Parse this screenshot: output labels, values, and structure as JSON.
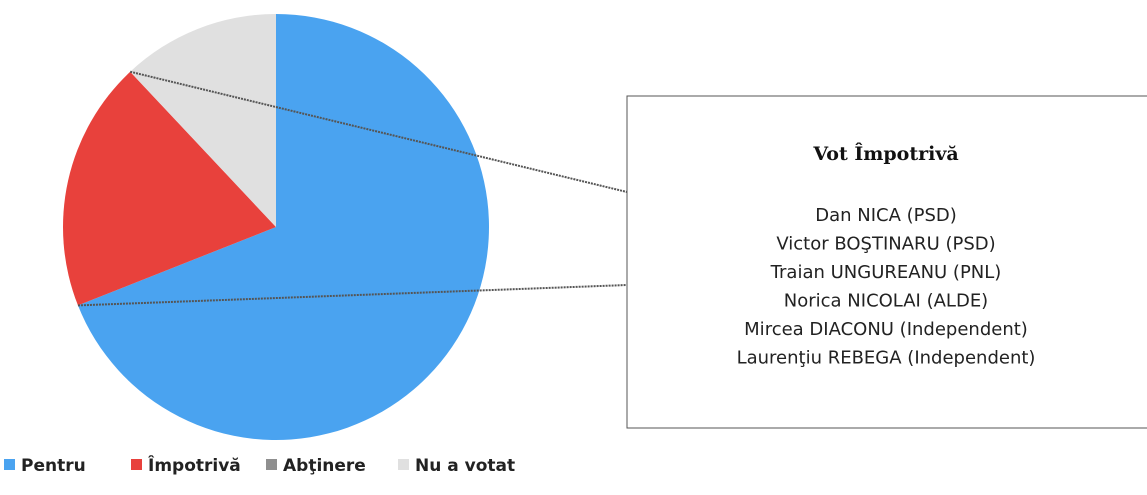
{
  "chart_data": {
    "type": "pie",
    "categories": [
      "Pentru",
      "Împotrivă",
      "Abţinere",
      "Nu a votat"
    ],
    "values": [
      69,
      19,
      0,
      12
    ],
    "colors": [
      "#4aa3f0",
      "#e8413c",
      "#8f8f8f",
      "#e0e0e0"
    ],
    "callout": {
      "title": "Vot Împotrivă",
      "items": [
        "Dan NICA (PSD)",
        "Victor BOŞTINARU (PSD)",
        "Traian UNGUREANU (PNL)",
        "Norica NICOLAI (ALDE)",
        "Mircea DIACONU (Independent)",
        "Laurenţiu REBEGA (Independent)"
      ]
    }
  }
}
